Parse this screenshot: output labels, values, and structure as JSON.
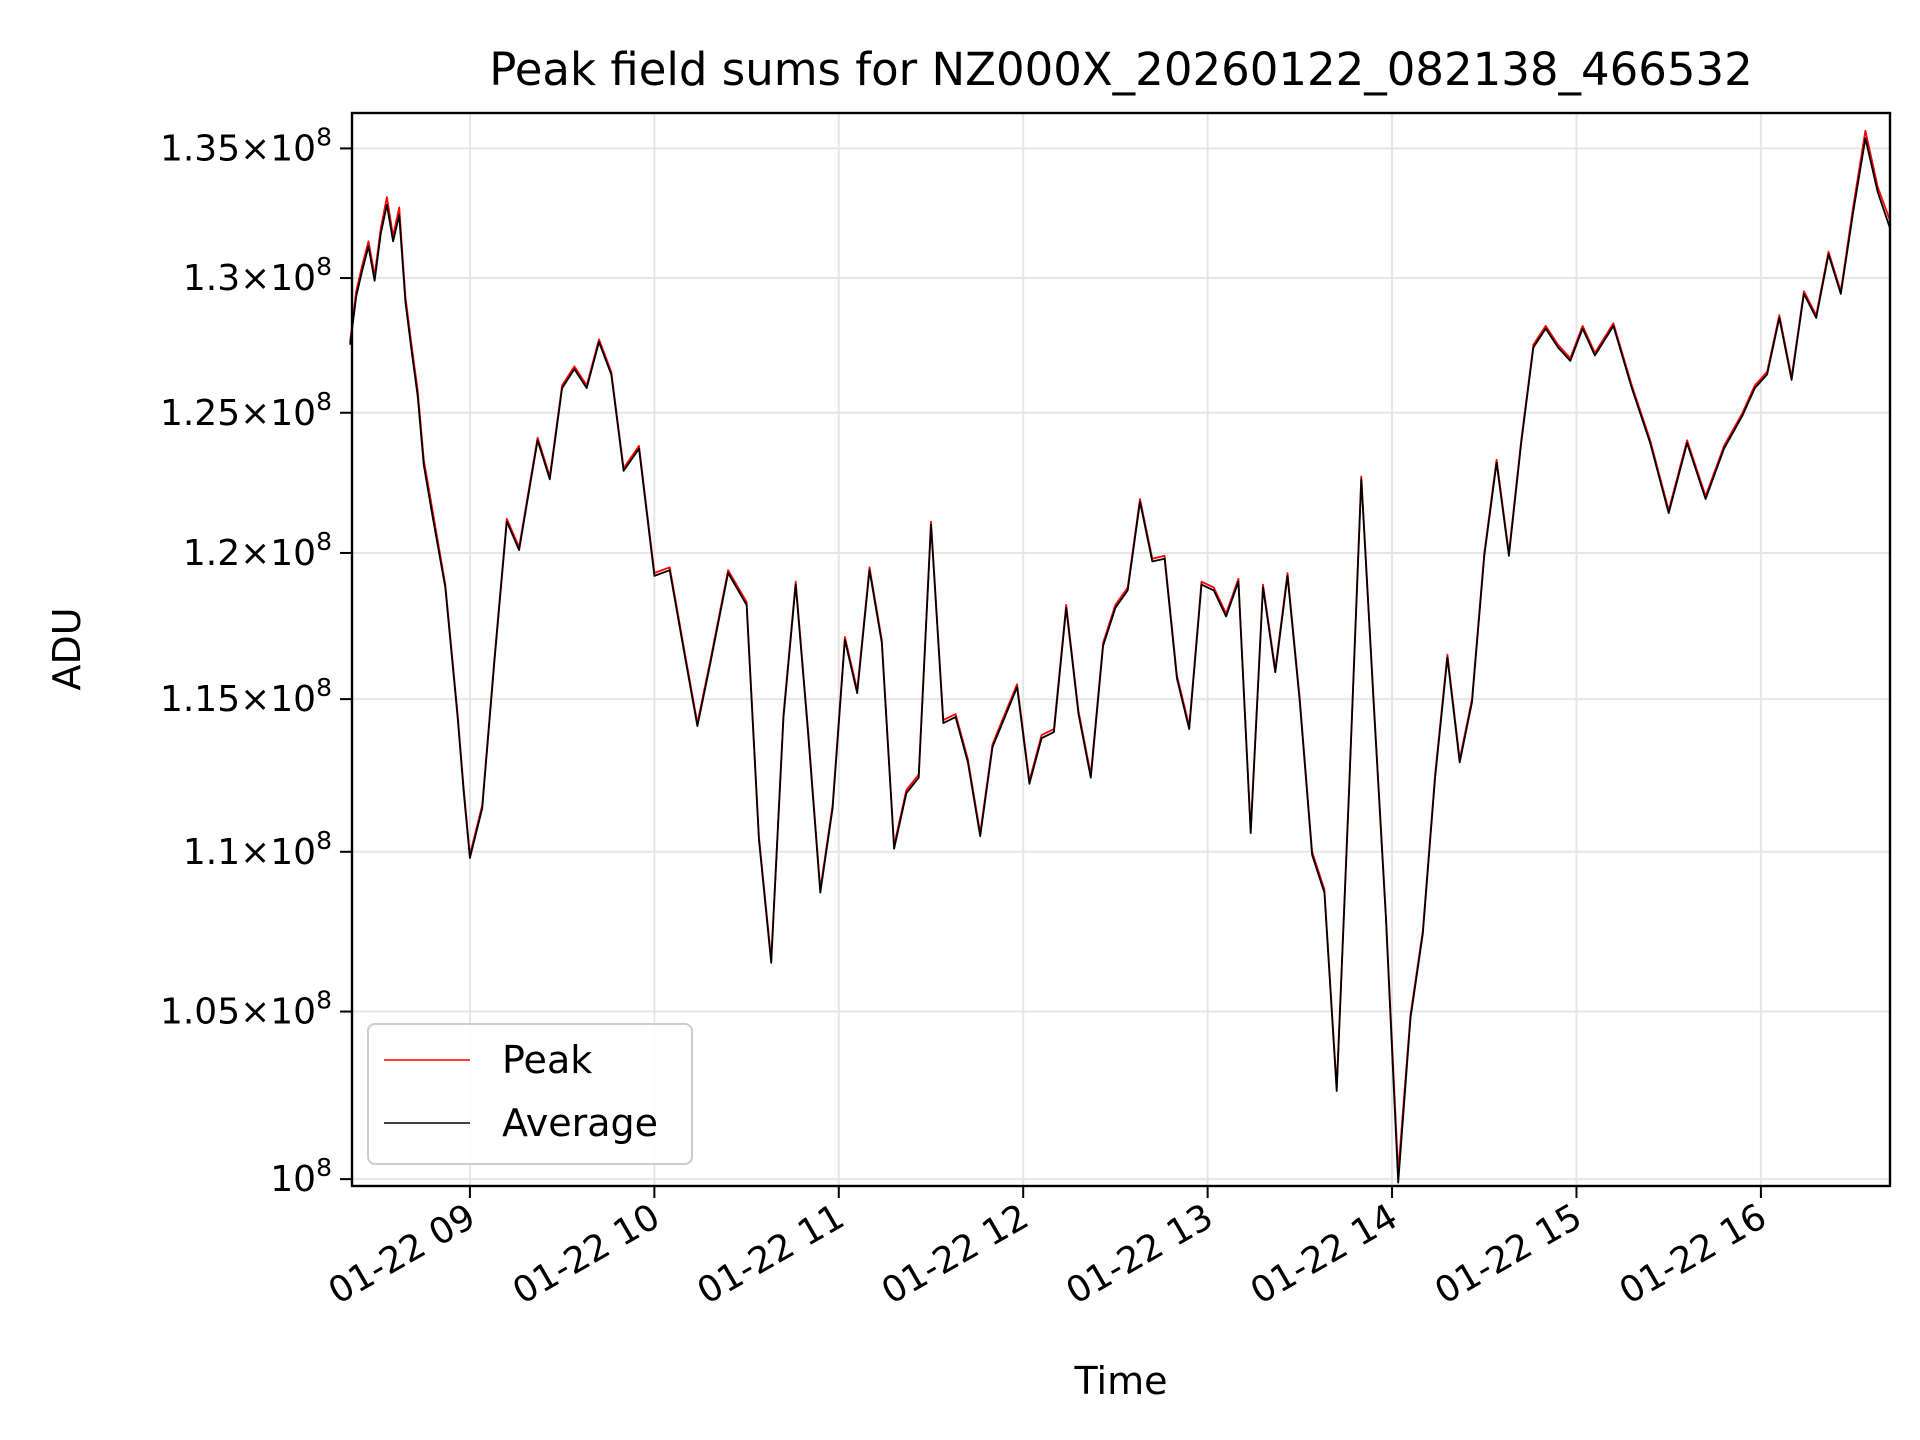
{
  "chart_data": {
    "type": "line",
    "title": "Peak field sums for NZ000X_20260122_082138_466532",
    "xlabel": "Time",
    "ylabel": "ADU",
    "y_scale": "log",
    "ylim": [
      99800000,
      136400000
    ],
    "xlim": [
      "2026-01-22 08:21:38",
      "2026-01-22 16:42:00"
    ],
    "grid": true,
    "legend_position": "lower-left",
    "x_ticks": [
      {
        "label": "01-22 09",
        "value": "2026-01-22 09:00"
      },
      {
        "label": "01-22 10",
        "value": "2026-01-22 10:00"
      },
      {
        "label": "01-22 11",
        "value": "2026-01-22 11:00"
      },
      {
        "label": "01-22 12",
        "value": "2026-01-22 12:00"
      },
      {
        "label": "01-22 13",
        "value": "2026-01-22 13:00"
      },
      {
        "label": "01-22 14",
        "value": "2026-01-22 14:00"
      },
      {
        "label": "01-22 15",
        "value": "2026-01-22 15:00"
      },
      {
        "label": "01-22 16",
        "value": "2026-01-22 16:00"
      }
    ],
    "y_ticks": [
      {
        "mantissa": "1.35",
        "exponent": "8",
        "value": 135000000
      },
      {
        "mantissa": "1.3",
        "exponent": "8",
        "value": 130000000
      },
      {
        "mantissa": "1.25",
        "exponent": "8",
        "value": 125000000
      },
      {
        "mantissa": "1.2",
        "exponent": "8",
        "value": 120000000
      },
      {
        "mantissa": "1.15",
        "exponent": "8",
        "value": 115000000
      },
      {
        "mantissa": "1.1",
        "exponent": "8",
        "value": 110000000
      },
      {
        "mantissa": "1.05",
        "exponent": "8",
        "value": 105000000
      },
      {
        "mantissa": "",
        "exponent": "8",
        "value": 100000000
      }
    ],
    "series": [
      {
        "name": "Peak",
        "color": "#ff0000",
        "x": [
          "08:21",
          "08:23",
          "08:25",
          "08:27",
          "08:29",
          "08:31",
          "08:33",
          "08:35",
          "08:37",
          "08:39",
          "08:41",
          "08:43",
          "08:45",
          "08:48",
          "08:52",
          "08:56",
          "08:58",
          "09:00",
          "09:04",
          "09:08",
          "09:12",
          "09:16",
          "09:22",
          "09:26",
          "09:30",
          "09:34",
          "09:38",
          "09:42",
          "09:46",
          "09:50",
          "09:55",
          "10:00",
          "10:05",
          "10:10",
          "10:14",
          "10:18",
          "10:24",
          "10:30",
          "10:34",
          "10:38",
          "10:42",
          "10:46",
          "10:50",
          "10:54",
          "10:58",
          "11:02",
          "11:06",
          "11:10",
          "11:14",
          "11:18",
          "11:22",
          "11:26",
          "11:30",
          "11:34",
          "11:38",
          "11:42",
          "11:46",
          "11:50",
          "11:54",
          "11:58",
          "12:02",
          "12:06",
          "12:10",
          "12:14",
          "12:18",
          "12:22",
          "12:26",
          "12:30",
          "12:34",
          "12:38",
          "12:42",
          "12:46",
          "12:50",
          "12:54",
          "12:58",
          "13:02",
          "13:06",
          "13:10",
          "13:14",
          "13:18",
          "13:22",
          "13:26",
          "13:30",
          "13:34",
          "13:38",
          "13:42",
          "13:46",
          "13:50",
          "13:54",
          "13:58",
          "14:02",
          "14:06",
          "14:10",
          "14:14",
          "14:18",
          "14:22",
          "14:26",
          "14:30",
          "14:34",
          "14:38",
          "14:42",
          "14:46",
          "14:50",
          "14:54",
          "14:58",
          "15:02",
          "15:06",
          "15:12",
          "15:18",
          "15:24",
          "15:30",
          "15:36",
          "15:42",
          "15:48",
          "15:54",
          "15:58",
          "16:02",
          "16:06",
          "16:10",
          "16:14",
          "16:18",
          "16:22",
          "16:26",
          "16:30",
          "16:34",
          "16:38",
          "16:42"
        ],
        "y": [
          127600000,
          129500000,
          130500000,
          131400000,
          130100000,
          131900000,
          133100000,
          131600000,
          132700000,
          129300000,
          127500000,
          125800000,
          123300000,
          121400000,
          118900000,
          114500000,
          112000000,
          109900000,
          111500000,
          116400000,
          121200000,
          120200000,
          124100000,
          122700000,
          126000000,
          126700000,
          126000000,
          127700000,
          126500000,
          123000000,
          123800000,
          119300000,
          119500000,
          116500000,
          114200000,
          116200000,
          119400000,
          118300000,
          110500000,
          106600000,
          114500000,
          119000000,
          114000000,
          108800000,
          111500000,
          117100000,
          115300000,
          119500000,
          117000000,
          110200000,
          112000000,
          112500000,
          121100000,
          114300000,
          114500000,
          113000000,
          110600000,
          113500000,
          114500000,
          115500000,
          112300000,
          113800000,
          114000000,
          118200000,
          114600000,
          112500000,
          116900000,
          118200000,
          118800000,
          121900000,
          119800000,
          119900000,
          115800000,
          114100000,
          119000000,
          118800000,
          117900000,
          119100000,
          110700000,
          118900000,
          116000000,
          119300000,
          115000000,
          110000000,
          108800000,
          102700000,
          112000000,
          122700000,
          115000000,
          108000000,
          100200000,
          104900000,
          107500000,
          112500000,
          116500000,
          113000000,
          115000000,
          120000000,
          123300000,
          120000000,
          124000000,
          127500000,
          128200000,
          127500000,
          127000000,
          128200000,
          127200000,
          128300000,
          126000000,
          124000000,
          121500000,
          124000000,
          122000000,
          123800000,
          125000000,
          126000000,
          126500000,
          128600000,
          126300000,
          129500000,
          128600000,
          131000000,
          129500000,
          132700000,
          135700000,
          133500000,
          132200000
        ]
      },
      {
        "name": "Average",
        "color": "#000000",
        "x": [
          "08:21",
          "08:23",
          "08:25",
          "08:27",
          "08:29",
          "08:31",
          "08:33",
          "08:35",
          "08:37",
          "08:39",
          "08:41",
          "08:43",
          "08:45",
          "08:48",
          "08:52",
          "08:56",
          "08:58",
          "09:00",
          "09:04",
          "09:08",
          "09:12",
          "09:16",
          "09:22",
          "09:26",
          "09:30",
          "09:34",
          "09:38",
          "09:42",
          "09:46",
          "09:50",
          "09:55",
          "10:00",
          "10:05",
          "10:10",
          "10:14",
          "10:18",
          "10:24",
          "10:30",
          "10:34",
          "10:38",
          "10:42",
          "10:46",
          "10:50",
          "10:54",
          "10:58",
          "11:02",
          "11:06",
          "11:10",
          "11:14",
          "11:18",
          "11:22",
          "11:26",
          "11:30",
          "11:34",
          "11:38",
          "11:42",
          "11:46",
          "11:50",
          "11:54",
          "11:58",
          "12:02",
          "12:06",
          "12:10",
          "12:14",
          "12:18",
          "12:22",
          "12:26",
          "12:30",
          "12:34",
          "12:38",
          "12:42",
          "12:46",
          "12:50",
          "12:54",
          "12:58",
          "13:02",
          "13:06",
          "13:10",
          "13:14",
          "13:18",
          "13:22",
          "13:26",
          "13:30",
          "13:34",
          "13:38",
          "13:42",
          "13:46",
          "13:50",
          "13:54",
          "13:58",
          "14:02",
          "14:06",
          "14:10",
          "14:14",
          "14:18",
          "14:22",
          "14:26",
          "14:30",
          "14:34",
          "14:38",
          "14:42",
          "14:46",
          "14:50",
          "14:54",
          "14:58",
          "15:02",
          "15:06",
          "15:12",
          "15:18",
          "15:24",
          "15:30",
          "15:36",
          "15:42",
          "15:48",
          "15:54",
          "15:58",
          "16:02",
          "16:06",
          "16:10",
          "16:14",
          "16:18",
          "16:22",
          "16:26",
          "16:30",
          "16:34",
          "16:38",
          "16:42"
        ],
        "y": [
          127500000,
          129300000,
          130300000,
          131200000,
          129900000,
          131700000,
          132800000,
          131400000,
          132400000,
          129100000,
          127300000,
          125600000,
          123100000,
          121200000,
          118800000,
          114400000,
          111900000,
          109800000,
          111400000,
          116300000,
          121100000,
          120100000,
          124000000,
          122600000,
          125900000,
          126600000,
          125900000,
          127600000,
          126400000,
          122900000,
          123700000,
          119200000,
          119400000,
          116400000,
          114100000,
          116100000,
          119300000,
          118200000,
          110400000,
          106500000,
          114400000,
          118900000,
          113900000,
          108700000,
          111400000,
          117000000,
          115200000,
          119400000,
          116900000,
          110100000,
          111900000,
          112400000,
          121000000,
          114200000,
          114400000,
          112900000,
          110500000,
          113400000,
          114400000,
          115400000,
          112200000,
          113700000,
          113900000,
          118100000,
          114500000,
          112400000,
          116800000,
          118100000,
          118700000,
          121800000,
          119700000,
          119800000,
          115700000,
          114000000,
          118900000,
          118700000,
          117800000,
          119000000,
          110600000,
          118800000,
          115900000,
          119200000,
          114900000,
          109900000,
          108700000,
          102600000,
          111900000,
          122600000,
          114900000,
          107900000,
          99900000,
          104800000,
          107400000,
          112400000,
          116400000,
          112900000,
          114900000,
          119900000,
          123200000,
          119900000,
          123900000,
          127400000,
          128100000,
          127400000,
          126900000,
          128100000,
          127100000,
          128200000,
          125900000,
          123900000,
          121400000,
          123900000,
          121900000,
          123700000,
          124900000,
          125900000,
          126400000,
          128500000,
          126200000,
          129400000,
          128500000,
          130900000,
          129400000,
          132500000,
          135400000,
          133300000,
          131900000
        ]
      }
    ]
  }
}
